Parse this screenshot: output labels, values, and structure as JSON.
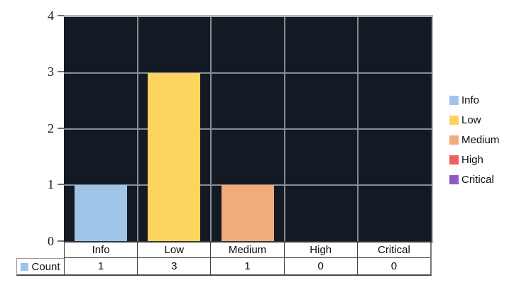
{
  "chart_data": {
    "type": "bar",
    "categories": [
      "Info",
      "Low",
      "Medium",
      "High",
      "Critical"
    ],
    "series": [
      {
        "name": "Count",
        "values": [
          1,
          3,
          1,
          0,
          0
        ]
      }
    ],
    "title": "",
    "xlabel": "",
    "ylabel": "",
    "ylim": [
      0,
      4
    ],
    "yticks": [
      "4",
      "3",
      "2",
      "1",
      "0"
    ],
    "grid": true,
    "legend_position": "right",
    "plot_background": "#141a23",
    "gridline_color": "#868b94",
    "bar_colors": [
      "#9fc5e8",
      "#fdd55e",
      "#f2ab7a",
      "#f25c5c",
      "#8a5cbf"
    ]
  },
  "legend": {
    "items": [
      {
        "label": "Info",
        "color": "#9fc5e8"
      },
      {
        "label": "Low",
        "color": "#fdd55e"
      },
      {
        "label": "Medium",
        "color": "#f2ab7a"
      },
      {
        "label": "High",
        "color": "#f25c5c"
      },
      {
        "label": "Critical",
        "color": "#8a5cbf"
      }
    ]
  },
  "table": {
    "row_header": "Count",
    "marker_color": "#9fc5e8",
    "columns": [
      "Info",
      "Low",
      "Medium",
      "High",
      "Critical"
    ],
    "values": [
      "1",
      "3",
      "1",
      "0",
      "0"
    ]
  }
}
